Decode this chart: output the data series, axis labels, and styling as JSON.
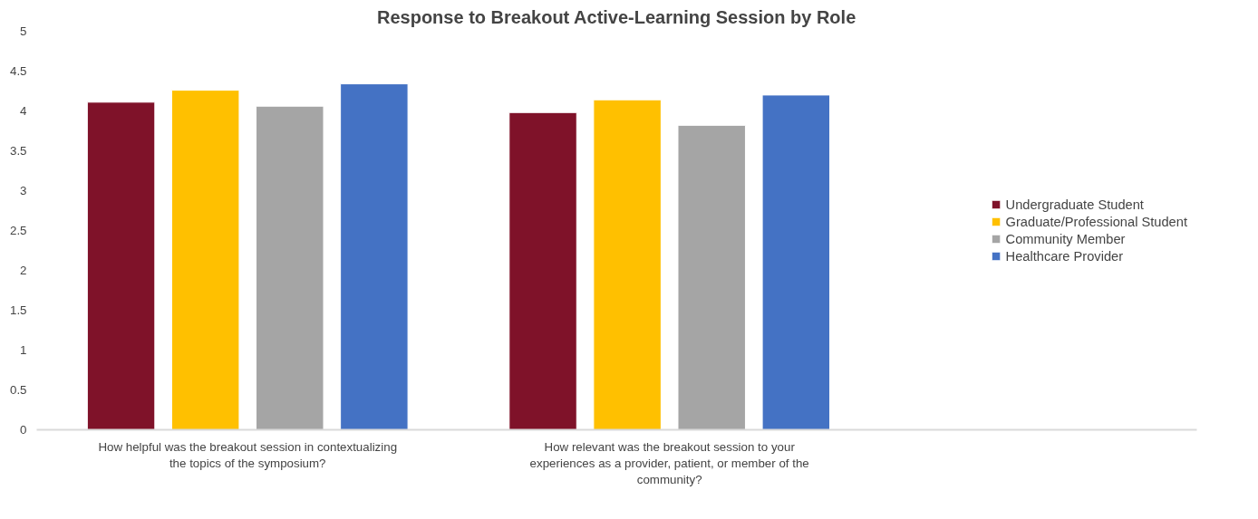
{
  "chart_data": {
    "type": "bar",
    "title": "Response to Breakout Active-Learning Session by Role",
    "categories": [
      "How helpful was the breakout session in contextualizing the topics of the symposium?",
      "How relevant was the breakout session to your experiences as a provider, patient, or member of the community?"
    ],
    "series": [
      {
        "name": "Undergraduate Student",
        "color": "#7f1229",
        "values": [
          4.11,
          3.98
        ]
      },
      {
        "name": "Graduate/Professional Student",
        "color": "#ffc000",
        "values": [
          4.26,
          4.14
        ]
      },
      {
        "name": "Community Member",
        "color": "#a5a5a5",
        "values": [
          4.06,
          3.82
        ]
      },
      {
        "name": "Healthcare Provider",
        "color": "#4472c4",
        "values": [
          4.34,
          4.2
        ]
      }
    ],
    "ylim": [
      0,
      5
    ],
    "yticks": [
      0,
      0.5,
      1,
      1.5,
      2,
      2.5,
      3,
      3.5,
      4,
      4.5,
      5
    ],
    "grid": false,
    "legend": "right"
  }
}
